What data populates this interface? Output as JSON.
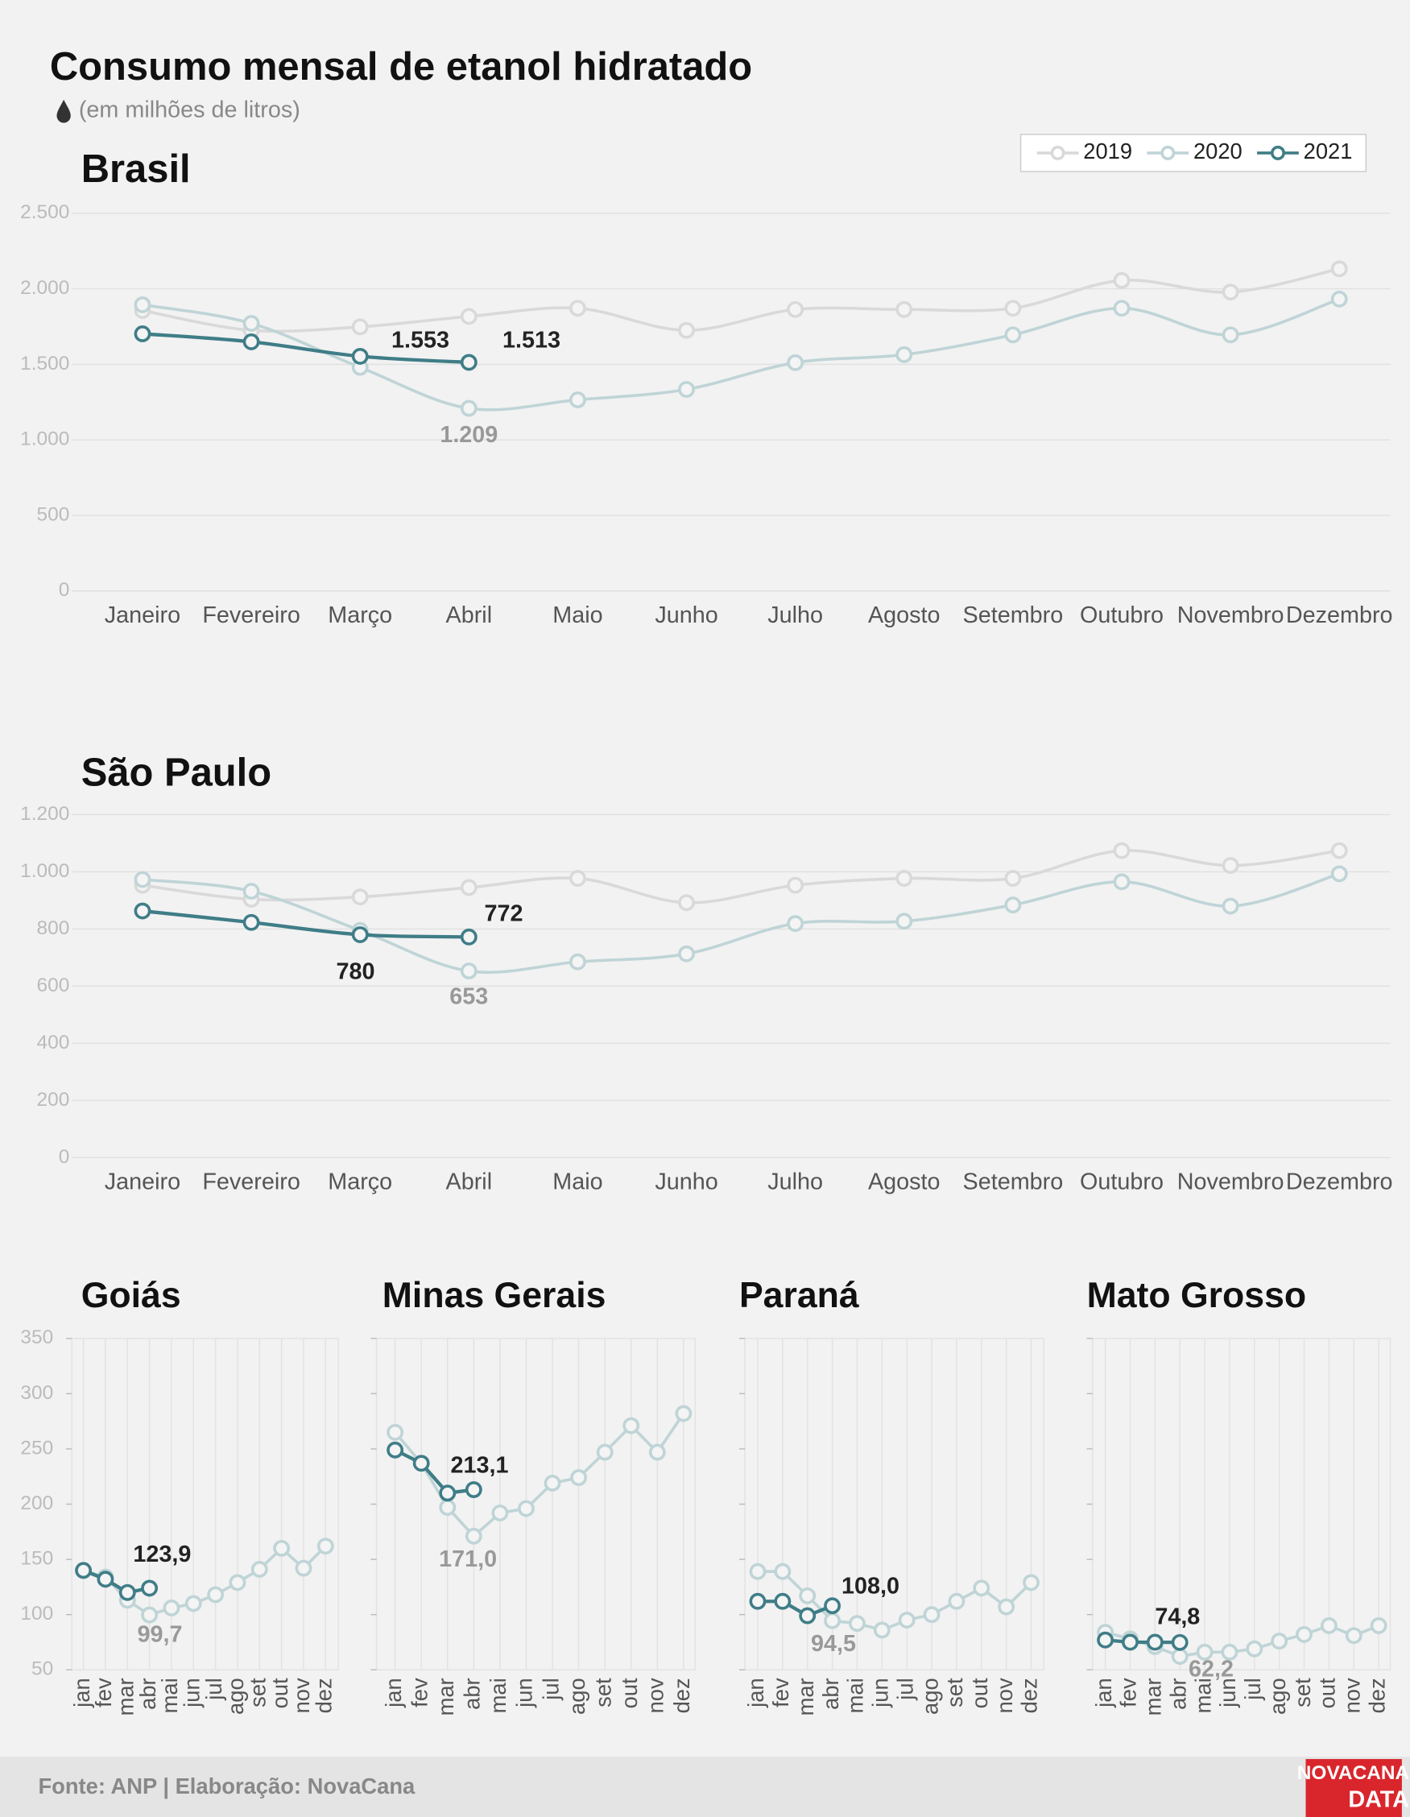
{
  "title": "Consumo mensal de etanol hidratado",
  "subtitle": "(em milhões de litros)",
  "source": "Fonte: ANP | Elaboração: NovaCana",
  "logo": [
    "NOVACANA",
    "DATA"
  ],
  "chart_data": [
    {
      "type": "line",
      "title": "Brasil",
      "smooth": true,
      "grid": "y",
      "legend": "top-right",
      "categories": [
        "Janeiro",
        "Fevereiro",
        "Março",
        "Abril",
        "Maio",
        "Junho",
        "Julho",
        "Agosto",
        "Setembro",
        "Outubro",
        "Novembro",
        "Dezembro"
      ],
      "ylim": [
        0,
        2500
      ],
      "yticks": [
        0,
        500,
        {
          "value": 1000,
          "label": "1.000"
        },
        {
          "value": 1500,
          "label": "1.500"
        },
        {
          "value": 2000,
          "label": "2.000"
        },
        {
          "value": 2500,
          "label": "2.500"
        }
      ],
      "series": [
        {
          "name": "2019",
          "color": "#d9d9d9",
          "values": [
            1856,
            1725,
            1748,
            1817,
            1871,
            1725,
            1863,
            1863,
            1871,
            2055,
            1978,
            2132
          ]
        },
        {
          "name": "2020",
          "color": "#bfd4d6",
          "values": [
            1894,
            1771,
            1480,
            1209,
            1265,
            1334,
            1511,
            1564,
            1695,
            1871,
            1695,
            1932
          ],
          "value_labels": [
            null,
            null,
            null,
            "1.209",
            null,
            null,
            null,
            null,
            null,
            null,
            null,
            null
          ]
        },
        {
          "name": "2021",
          "color": "#3f7d87",
          "values": [
            1702,
            1649,
            1553,
            1513,
            null,
            null,
            null,
            null,
            null,
            null,
            null,
            null
          ],
          "value_labels": [
            null,
            null,
            "1.553",
            "1.513",
            null,
            null,
            null,
            null,
            null,
            null,
            null,
            null
          ]
        }
      ]
    },
    {
      "type": "line",
      "title": "São Paulo",
      "smooth": true,
      "grid": "y",
      "categories": [
        "Janeiro",
        "Fevereiro",
        "Março",
        "Abril",
        "Maio",
        "Junho",
        "Julho",
        "Agosto",
        "Setembro",
        "Outubro",
        "Novembro",
        "Dezembro"
      ],
      "ylim": [
        0,
        1200
      ],
      "yticks": [
        0,
        200,
        400,
        600,
        800,
        {
          "value": 1000,
          "label": "1.000"
        },
        {
          "value": 1200,
          "label": "1.200"
        }
      ],
      "series": [
        {
          "name": "2019",
          "color": "#d9d9d9",
          "values": [
            953,
            904,
            912,
            945,
            977,
            892,
            953,
            977,
            977,
            1074,
            1022,
            1074
          ]
        },
        {
          "name": "2020",
          "color": "#bfd4d6",
          "values": [
            973,
            932,
            795,
            653,
            685,
            713,
            819,
            827,
            884,
            965,
            880,
            993
          ],
          "value_labels": [
            null,
            null,
            null,
            "653",
            null,
            null,
            null,
            null,
            null,
            null,
            null,
            null
          ]
        },
        {
          "name": "2021",
          "color": "#3f7d87",
          "values": [
            863,
            823,
            780,
            772,
            null,
            null,
            null,
            null,
            null,
            null,
            null,
            null
          ],
          "value_labels": [
            null,
            null,
            "780",
            "772",
            null,
            null,
            null,
            null,
            null,
            null,
            null,
            null
          ]
        }
      ]
    },
    {
      "type": "line",
      "title": "Goiás",
      "smooth": false,
      "grid": "x",
      "ytick_labels": true,
      "categories": [
        "jan",
        "fev",
        "mar",
        "abr",
        "mai",
        "jun",
        "jul",
        "ago",
        "set",
        "out",
        "nov",
        "dez"
      ],
      "ylim": [
        50,
        350
      ],
      "yticks": [
        50,
        100,
        150,
        200,
        250,
        300,
        350
      ],
      "series": [
        {
          "name": "2020",
          "color": "#bfd4d6",
          "values": [
            140,
            134,
            113,
            99.7,
            106,
            110,
            118,
            129,
            141,
            160,
            142,
            162
          ],
          "value_labels": [
            null,
            null,
            null,
            "99,7",
            null,
            null,
            null,
            null,
            null,
            null,
            null,
            null
          ]
        },
        {
          "name": "2021",
          "color": "#3f7d87",
          "values": [
            140,
            132,
            120,
            123.9,
            null,
            null,
            null,
            null,
            null,
            null,
            null,
            null
          ],
          "value_labels": [
            null,
            null,
            null,
            "123,9",
            null,
            null,
            null,
            null,
            null,
            null,
            null,
            null
          ]
        }
      ]
    },
    {
      "type": "line",
      "title": "Minas Gerais",
      "smooth": false,
      "grid": "x",
      "ytick_labels": false,
      "categories": [
        "jan",
        "fev",
        "mar",
        "abr",
        "mai",
        "jun",
        "jul",
        "ago",
        "set",
        "out",
        "nov",
        "dez"
      ],
      "ylim": [
        50,
        350
      ],
      "yticks": [
        50,
        100,
        150,
        200,
        250,
        300,
        350
      ],
      "series": [
        {
          "name": "2020",
          "color": "#bfd4d6",
          "values": [
            265,
            237,
            197,
            171.0,
            192,
            196,
            219,
            224,
            247,
            271,
            247,
            282
          ],
          "value_labels": [
            null,
            null,
            null,
            "171,0",
            null,
            null,
            null,
            null,
            null,
            null,
            null,
            null
          ]
        },
        {
          "name": "2021",
          "color": "#3f7d87",
          "values": [
            249,
            237,
            210,
            213.1,
            null,
            null,
            null,
            null,
            null,
            null,
            null,
            null
          ],
          "value_labels": [
            null,
            null,
            null,
            "213,1",
            null,
            null,
            null,
            null,
            null,
            null,
            null,
            null
          ]
        }
      ]
    },
    {
      "type": "line",
      "title": "Paraná",
      "smooth": false,
      "grid": "x",
      "ytick_labels": false,
      "categories": [
        "jan",
        "fev",
        "mar",
        "abr",
        "mai",
        "jun",
        "jul",
        "ago",
        "set",
        "out",
        "nov",
        "dez"
      ],
      "ylim": [
        50,
        350
      ],
      "yticks": [
        50,
        100,
        150,
        200,
        250,
        300,
        350
      ],
      "series": [
        {
          "name": "2020",
          "color": "#bfd4d6",
          "values": [
            139,
            139,
            117,
            94.5,
            92,
            86,
            95,
            100,
            112,
            124,
            107,
            129
          ],
          "value_labels": [
            null,
            null,
            null,
            "94,5",
            null,
            null,
            null,
            null,
            null,
            null,
            null,
            null
          ]
        },
        {
          "name": "2021",
          "color": "#3f7d87",
          "values": [
            112,
            112,
            99,
            108.0,
            null,
            null,
            null,
            null,
            null,
            null,
            null,
            null
          ],
          "value_labels": [
            null,
            null,
            null,
            "108,0",
            null,
            null,
            null,
            null,
            null,
            null,
            null,
            null
          ]
        }
      ]
    },
    {
      "type": "line",
      "title": "Mato Grosso",
      "smooth": false,
      "grid": "x",
      "ytick_labels": false,
      "categories": [
        "jan",
        "fev",
        "mar",
        "abr",
        "mai",
        "jun",
        "jul",
        "ago",
        "set",
        "out",
        "nov",
        "dez"
      ],
      "ylim": [
        50,
        350
      ],
      "yticks": [
        50,
        100,
        150,
        200,
        250,
        300,
        350
      ],
      "series": [
        {
          "name": "2020",
          "color": "#bfd4d6",
          "values": [
            84,
            78,
            71,
            62.2,
            66,
            66,
            69,
            76,
            82,
            90,
            81,
            90
          ],
          "value_labels": [
            null,
            null,
            null,
            "62,2",
            null,
            null,
            null,
            null,
            null,
            null,
            null,
            null
          ]
        },
        {
          "name": "2021",
          "color": "#3f7d87",
          "values": [
            77,
            75,
            75,
            74.8,
            null,
            null,
            null,
            null,
            null,
            null,
            null,
            null
          ],
          "value_labels": [
            null,
            null,
            null,
            "74,8",
            null,
            null,
            null,
            null,
            null,
            null,
            null,
            null
          ]
        }
      ]
    }
  ]
}
